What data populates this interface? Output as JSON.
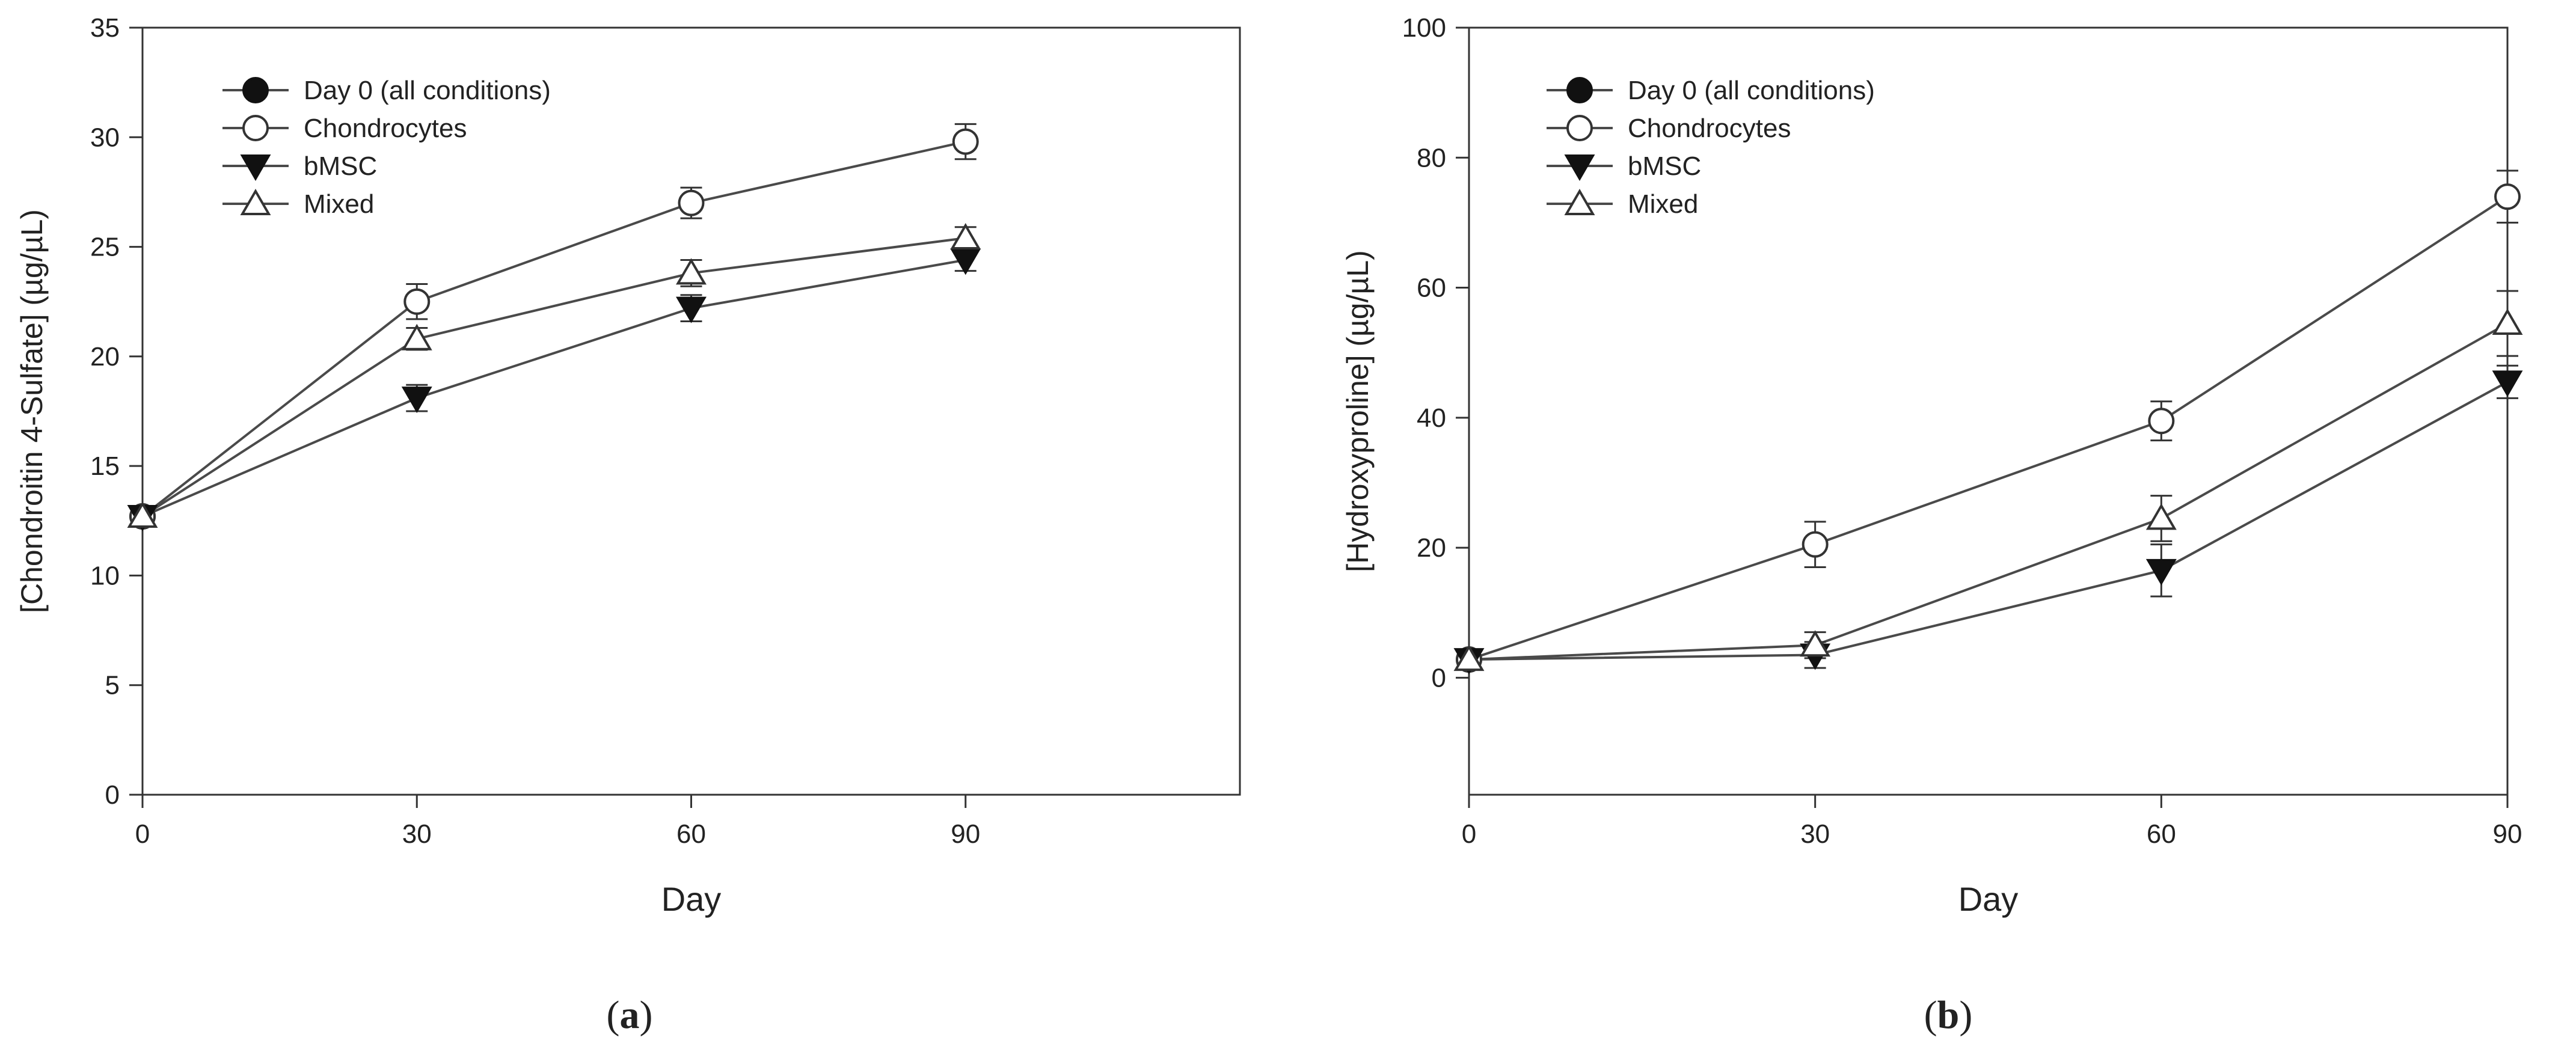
{
  "chart_data": [
    {
      "type": "line",
      "panel_label": "(a)",
      "panel_letter": "a",
      "xlabel": "Day",
      "ylabel": "[Chondroitin 4-Sulfate] (µg/µL)",
      "xlim": [
        0,
        120
      ],
      "ylim": [
        0,
        35
      ],
      "xticks": [
        0,
        30,
        60,
        90
      ],
      "yticks": [
        0,
        5,
        10,
        15,
        20,
        25,
        30,
        35
      ],
      "grid": false,
      "legend_position": "top-left",
      "series": [
        {
          "name": "Day 0 (all conditions)",
          "marker": "filled-circle",
          "x": [
            0
          ],
          "y": [
            12.7
          ],
          "err": [
            0.3
          ]
        },
        {
          "name": "Chondrocytes",
          "marker": "open-circle",
          "x": [
            0,
            30,
            60,
            90
          ],
          "y": [
            12.7,
            22.5,
            27.0,
            29.8
          ],
          "err": [
            0.3,
            0.8,
            0.7,
            0.8
          ]
        },
        {
          "name": "bMSC",
          "marker": "filled-triangle-down",
          "x": [
            0,
            30,
            60,
            90
          ],
          "y": [
            12.7,
            18.1,
            22.2,
            24.4
          ],
          "err": [
            0.3,
            0.6,
            0.6,
            0.5
          ]
        },
        {
          "name": "Mixed",
          "marker": "open-triangle-up",
          "x": [
            0,
            30,
            60,
            90
          ],
          "y": [
            12.7,
            20.8,
            23.8,
            25.4
          ],
          "err": [
            0.3,
            0.5,
            0.6,
            0.5
          ]
        }
      ]
    },
    {
      "type": "line",
      "panel_label": "(b)",
      "panel_letter": "b",
      "xlabel": "Day",
      "ylabel": "[Hydroxyproline] (µg/µL)",
      "xlim": [
        0,
        90
      ],
      "ylim": [
        -18,
        100
      ],
      "xticks": [
        0,
        30,
        60,
        90
      ],
      "yticks": [
        0,
        20,
        40,
        60,
        80,
        100
      ],
      "grid": false,
      "legend_position": "top-left",
      "series": [
        {
          "name": "Day 0 (all conditions)",
          "marker": "filled-circle",
          "x": [
            0
          ],
          "y": [
            2.8
          ],
          "err": [
            1.0
          ]
        },
        {
          "name": "Chondrocytes",
          "marker": "open-circle",
          "x": [
            0,
            30,
            60,
            90
          ],
          "y": [
            2.8,
            20.5,
            39.5,
            74.0
          ],
          "err": [
            1.0,
            3.5,
            3.0,
            4.0
          ]
        },
        {
          "name": "bMSC",
          "marker": "filled-triangle-down",
          "x": [
            0,
            30,
            60,
            90
          ],
          "y": [
            2.8,
            3.5,
            16.5,
            45.5
          ],
          "err": [
            1.0,
            2.0,
            4.0,
            2.5
          ]
        },
        {
          "name": "Mixed",
          "marker": "open-triangle-up",
          "x": [
            0,
            30,
            60,
            90
          ],
          "y": [
            2.8,
            5.0,
            24.5,
            54.5
          ],
          "err": [
            1.0,
            2.0,
            3.5,
            5.0
          ]
        }
      ]
    }
  ]
}
